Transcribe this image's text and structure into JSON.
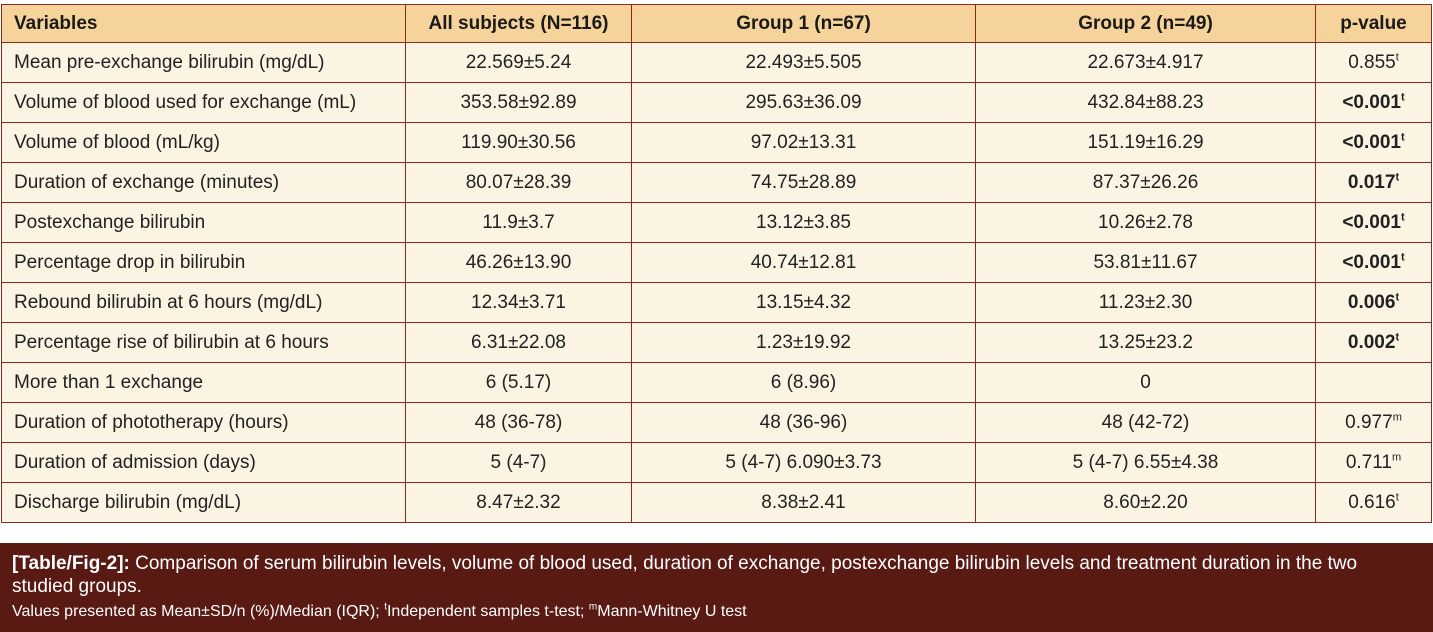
{
  "table": {
    "headers": [
      "Variables",
      "All subjects (N=116)",
      "Group 1 (n=67)",
      "Group 2 (n=49)",
      "p-value"
    ],
    "rows": [
      {
        "label": "Mean pre-exchange bilirubin (mg/dL)",
        "all": "22.569±5.24",
        "g1": "22.493±5.505",
        "g2": "22.673±4.917",
        "p": "0.855",
        "p_sup": "t",
        "p_bold": false
      },
      {
        "label": "Volume of blood used for exchange (mL)",
        "all": "353.58±92.89",
        "g1": "295.63±36.09",
        "g2": "432.84±88.23",
        "p": "<0.001",
        "p_sup": "t",
        "p_bold": true
      },
      {
        "label": "Volume of blood (mL/kg)",
        "all": "119.90±30.56",
        "g1": "97.02±13.31",
        "g2": "151.19±16.29",
        "p": "<0.001",
        "p_sup": "t",
        "p_bold": true
      },
      {
        "label": "Duration of exchange (minutes)",
        "all": "80.07±28.39",
        "g1": "74.75±28.89",
        "g2": "87.37±26.26",
        "p": "0.017",
        "p_sup": "t",
        "p_bold": true
      },
      {
        "label": "Postexchange bilirubin",
        "all": "11.9±3.7",
        "g1": "13.12±3.85",
        "g2": "10.26±2.78",
        "p": "<0.001",
        "p_sup": "t",
        "p_bold": true
      },
      {
        "label": "Percentage drop in bilirubin",
        "all": "46.26±13.90",
        "g1": "40.74±12.81",
        "g2": "53.81±11.67",
        "p": "<0.001",
        "p_sup": "t",
        "p_bold": true
      },
      {
        "label": "Rebound bilirubin at 6 hours (mg/dL)",
        "all": "12.34±3.71",
        "g1": "13.15±4.32",
        "g2": "11.23±2.30",
        "p": "0.006",
        "p_sup": "t",
        "p_bold": true
      },
      {
        "label": "Percentage rise of bilirubin at 6 hours",
        "all": "6.31±22.08",
        "g1": "1.23±19.92",
        "g2": "13.25±23.2",
        "p": "0.002",
        "p_sup": "t",
        "p_bold": true
      },
      {
        "label": "More than 1 exchange",
        "all": "6 (5.17)",
        "g1": "6 (8.96)",
        "g2": "0",
        "p": "",
        "p_sup": "",
        "p_bold": false
      },
      {
        "label": "Duration of phototherapy (hours)",
        "all": "48 (36-78)",
        "g1": "48 (36-96)",
        "g2": "48 (42-72)",
        "p": "0.977",
        "p_sup": "m",
        "p_bold": false
      },
      {
        "label": "Duration of admission (days)",
        "all": "5 (4-7)",
        "g1": "5 (4-7) 6.090±3.73",
        "g2": "5 (4-7) 6.55±4.38",
        "p": "0.711",
        "p_sup": "m",
        "p_bold": false
      },
      {
        "label": "Discharge bilirubin (mg/dL)",
        "all": "8.47±2.32",
        "g1": "8.38±2.41",
        "g2": "8.60±2.20",
        "p": "0.616",
        "p_sup": "t",
        "p_bold": false
      }
    ]
  },
  "caption": {
    "label": "[Table/Fig-2]:",
    "text": "Comparison of serum bilirubin levels, volume of blood used, duration of exchange, postexchange bilirubin levels and treatment duration in the two studied groups.",
    "note_part1": "Values presented as Mean±SD/n (%)/Median (IQR); ",
    "note_sup1": "t",
    "note_part2": "Independent samples t-test; ",
    "note_sup2": "m",
    "note_part3": "Mann-Whitney U test"
  },
  "colors": {
    "header_bg": "#f6d39a",
    "row_bg": "#fcf4e3",
    "border": "#8a2a1d",
    "caption_bg": "#5a1a14"
  }
}
